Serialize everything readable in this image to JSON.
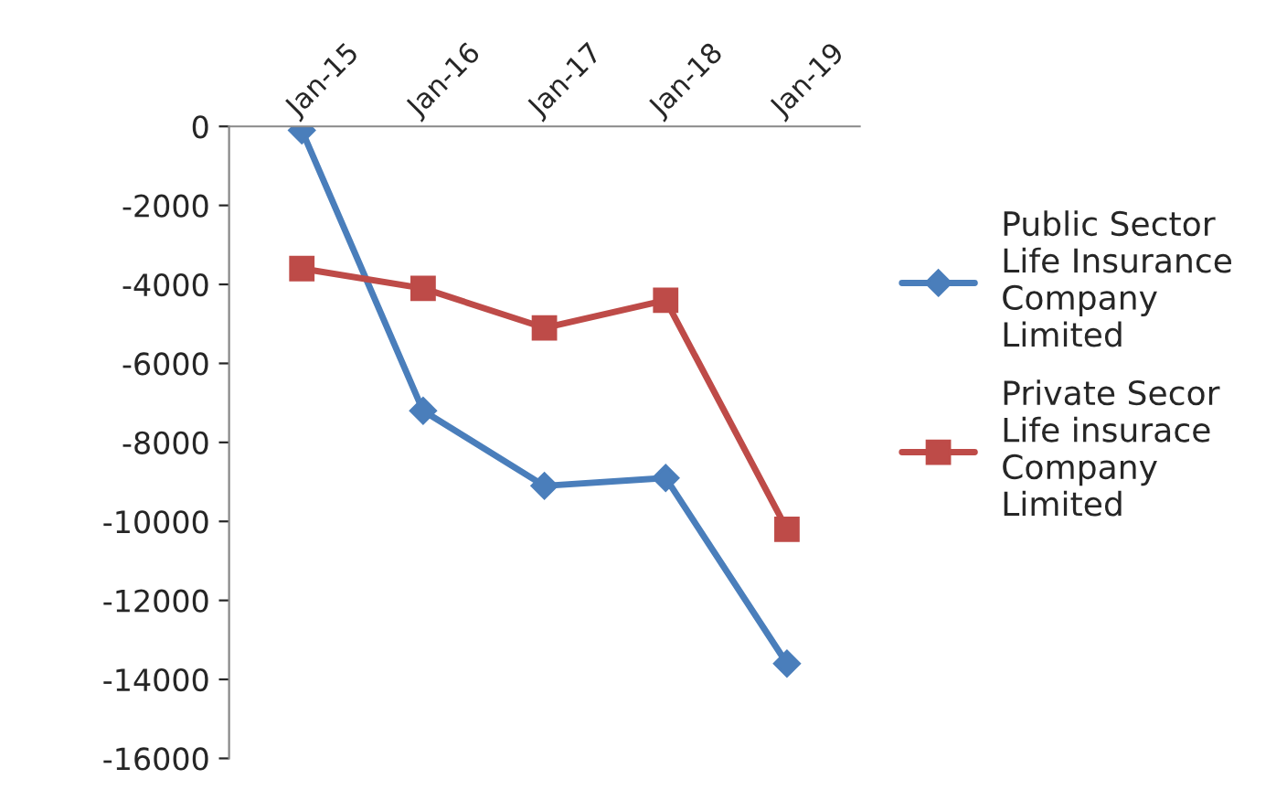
{
  "chart_data": {
    "type": "line",
    "categories": [
      "Jan-15",
      "Jan-16",
      "Jan-17",
      "Jan-18",
      "Jan-19"
    ],
    "series": [
      {
        "name": "Public Sector Life Insurance Company Limited",
        "color": "#4a7ebb",
        "marker": "diamond",
        "values": [
          -100,
          -7200,
          -9100,
          -8900,
          -13600
        ]
      },
      {
        "name": "Private Secor Life insurace Company Limited",
        "color": "#be4b48",
        "marker": "square",
        "values": [
          -3600,
          -4100,
          -5100,
          -4400,
          -10200
        ]
      }
    ],
    "ylim": [
      -16000,
      0
    ],
    "yticks": [
      -16000,
      -14000,
      -12000,
      -10000,
      -8000,
      -6000,
      -4000,
      -2000,
      0
    ],
    "grid": false,
    "legend": "right"
  }
}
